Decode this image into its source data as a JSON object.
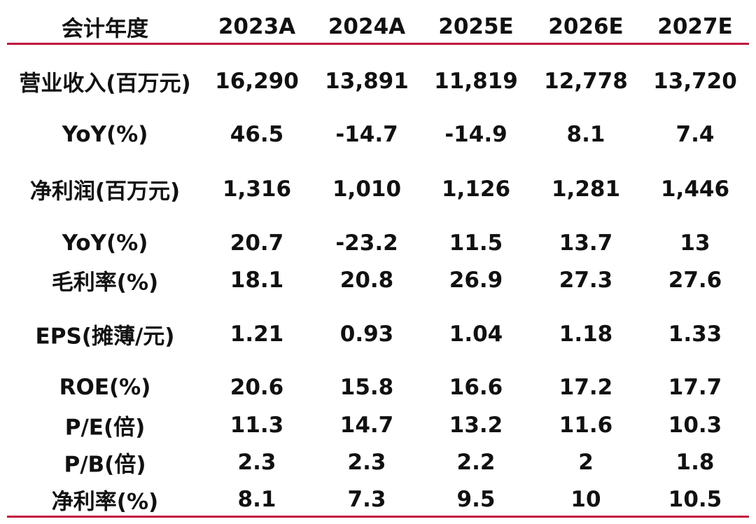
{
  "table": {
    "header": [
      "会计年度",
      "2023A",
      "2024A",
      "2025E",
      "2026E",
      "2027E"
    ],
    "rows": [
      [
        "营业收入(百万元)",
        "16,290",
        "13,891",
        "11,819",
        "12,778",
        "13,720"
      ],
      [
        "YoY(%)",
        "46.5",
        "-14.7",
        "-14.9",
        "8.1",
        "7.4"
      ],
      [
        "净利润(百万元)",
        "1,316",
        "1,010",
        "1,126",
        "1,281",
        "1,446"
      ],
      [
        "YoY(%)",
        "20.7",
        "-23.2",
        "11.5",
        "13.7",
        "13"
      ],
      [
        "毛利率(%)",
        "18.1",
        "20.8",
        "26.9",
        "27.3",
        "27.6"
      ],
      [
        "EPS(摊薄/元)",
        "1.21",
        "0.93",
        "1.04",
        "1.18",
        "1.33"
      ],
      [
        "ROE(%)",
        "20.6",
        "15.8",
        "16.6",
        "17.2",
        "17.7"
      ],
      [
        "P/E(倍)",
        "11.3",
        "14.7",
        "13.2",
        "11.6",
        "10.3"
      ],
      [
        "P/B(倍)",
        "2.3",
        "2.3",
        "2.2",
        "2",
        "1.8"
      ],
      [
        "净利率(%)",
        "8.1",
        "7.3",
        "9.5",
        "10",
        "10.5"
      ]
    ]
  }
}
